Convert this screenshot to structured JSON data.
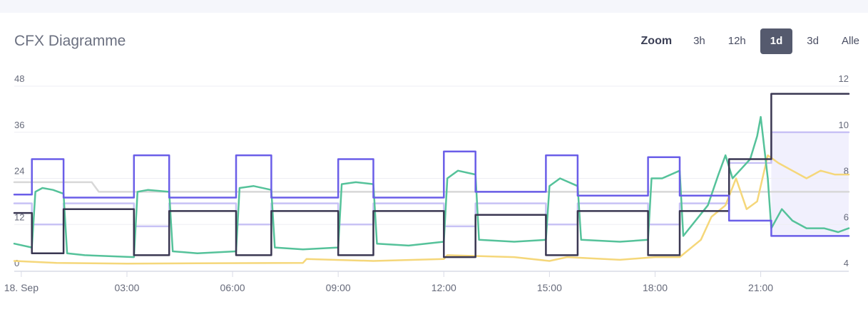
{
  "header": {
    "title": "CFX Diagramme",
    "zoom_label": "Zoom",
    "zoom_options": [
      "3h",
      "12h",
      "1d",
      "3d",
      "Alle"
    ],
    "zoom_selected": "1d"
  },
  "chart_data": {
    "type": "line",
    "title": "CFX Diagramme",
    "x_range_hours": [
      -0.2,
      23.5
    ],
    "x_tick_labels": [
      "18. Sep",
      "03:00",
      "06:00",
      "09:00",
      "12:00",
      "15:00",
      "18:00",
      "21:00"
    ],
    "x_tick_hours": [
      0,
      3,
      6,
      9,
      12,
      15,
      18,
      21
    ],
    "y_left": {
      "range": [
        0,
        48
      ],
      "ticks": [
        0,
        12,
        24,
        36,
        48
      ]
    },
    "y_right": {
      "range": [
        4,
        12
      ],
      "ticks": [
        4,
        6,
        8,
        10,
        12
      ]
    },
    "grid": true,
    "legend": "none",
    "colors": {
      "purple": "#6a5ee8",
      "lavender": "#c8c2f5",
      "dark": "#3a3752",
      "green": "#55c29a",
      "yellow": "#f5d77a",
      "gray": "#d8d8d8",
      "band_fill": "#f1f0fd"
    },
    "series": [
      {
        "color": "purple",
        "axis": "left",
        "points": [
          [
            -0.2,
            19.8
          ],
          [
            0.3,
            19.8
          ],
          [
            0.3,
            29
          ],
          [
            1.2,
            29
          ],
          [
            1.2,
            19
          ],
          [
            3.2,
            19
          ],
          [
            3.2,
            30
          ],
          [
            4.2,
            30
          ],
          [
            4.2,
            19
          ],
          [
            6.1,
            19
          ],
          [
            6.1,
            30
          ],
          [
            7.1,
            30
          ],
          [
            7.1,
            19
          ],
          [
            9.0,
            19
          ],
          [
            9.0,
            29
          ],
          [
            10.0,
            29
          ],
          [
            10.0,
            19
          ],
          [
            12.0,
            19
          ],
          [
            12.0,
            31
          ],
          [
            12.9,
            31
          ],
          [
            12.9,
            20.5
          ],
          [
            14.9,
            20.5
          ],
          [
            14.9,
            30
          ],
          [
            15.8,
            30
          ],
          [
            15.8,
            19.5
          ],
          [
            17.8,
            19.5
          ],
          [
            17.8,
            29.5
          ],
          [
            18.7,
            29.5
          ],
          [
            18.7,
            19.5
          ],
          [
            20.1,
            19.5
          ],
          [
            20.1,
            13
          ],
          [
            21.3,
            13
          ],
          [
            21.3,
            9
          ],
          [
            23.5,
            9
          ]
        ]
      },
      {
        "color": "lavender",
        "axis": "left",
        "points": [
          [
            -0.2,
            17.5
          ],
          [
            0.3,
            17.5
          ],
          [
            0.3,
            12
          ],
          [
            1.2,
            12
          ],
          [
            1.2,
            17.5
          ],
          [
            3.2,
            17.5
          ],
          [
            3.2,
            11.5
          ],
          [
            4.2,
            11.5
          ],
          [
            4.2,
            17.5
          ],
          [
            6.1,
            17.5
          ],
          [
            6.1,
            12
          ],
          [
            7.1,
            12
          ],
          [
            7.1,
            17.5
          ],
          [
            9.0,
            17.5
          ],
          [
            9.0,
            12
          ],
          [
            10.0,
            12
          ],
          [
            10.0,
            17.5
          ],
          [
            12.0,
            17.5
          ],
          [
            12.0,
            11.5
          ],
          [
            12.9,
            11.5
          ],
          [
            12.9,
            17.5
          ],
          [
            14.9,
            17.5
          ],
          [
            14.9,
            12
          ],
          [
            15.8,
            12
          ],
          [
            15.8,
            17.5
          ],
          [
            17.8,
            17.5
          ],
          [
            17.8,
            12
          ],
          [
            18.7,
            12
          ],
          [
            18.7,
            17.5
          ],
          [
            20.1,
            17.5
          ],
          [
            20.1,
            28
          ],
          [
            21.3,
            28
          ],
          [
            21.3,
            36
          ],
          [
            23.5,
            36
          ]
        ]
      },
      {
        "color": "dark",
        "axis": "left",
        "points": [
          [
            -0.2,
            15
          ],
          [
            0.3,
            15
          ],
          [
            0.3,
            4.5
          ],
          [
            1.2,
            4.5
          ],
          [
            1.2,
            16
          ],
          [
            3.2,
            16
          ],
          [
            3.2,
            4
          ],
          [
            4.2,
            4
          ],
          [
            4.2,
            15.5
          ],
          [
            6.1,
            15.5
          ],
          [
            6.1,
            4
          ],
          [
            7.1,
            4
          ],
          [
            7.1,
            15.5
          ],
          [
            9.0,
            15.5
          ],
          [
            9.0,
            4
          ],
          [
            10.0,
            4
          ],
          [
            10.0,
            15.5
          ],
          [
            12.0,
            15.5
          ],
          [
            12.0,
            3.5
          ],
          [
            12.9,
            3.5
          ],
          [
            12.9,
            14.5
          ],
          [
            14.9,
            14.5
          ],
          [
            14.9,
            4
          ],
          [
            15.8,
            4
          ],
          [
            15.8,
            15.5
          ],
          [
            17.8,
            15.5
          ],
          [
            17.8,
            4
          ],
          [
            18.7,
            4
          ],
          [
            18.7,
            15.5
          ],
          [
            20.1,
            15.5
          ],
          [
            20.1,
            29
          ],
          [
            21.3,
            29
          ],
          [
            21.3,
            46
          ],
          [
            23.5,
            46
          ]
        ]
      },
      {
        "color": "gray",
        "axis": "left",
        "points": [
          [
            -0.2,
            23
          ],
          [
            2.0,
            23
          ],
          [
            2.2,
            20.5
          ],
          [
            23.5,
            20.5
          ]
        ]
      },
      {
        "color": "green",
        "axis": "left",
        "points": [
          [
            -0.2,
            7
          ],
          [
            0.3,
            6
          ],
          [
            0.4,
            20.5
          ],
          [
            0.6,
            21.5
          ],
          [
            0.9,
            21
          ],
          [
            1.2,
            20
          ],
          [
            1.3,
            4.5
          ],
          [
            1.8,
            4
          ],
          [
            3.2,
            3.5
          ],
          [
            3.3,
            20.5
          ],
          [
            3.6,
            21
          ],
          [
            4.2,
            20.5
          ],
          [
            4.3,
            5
          ],
          [
            5.0,
            4.5
          ],
          [
            6.1,
            5
          ],
          [
            6.2,
            21.5
          ],
          [
            6.6,
            22
          ],
          [
            7.1,
            21
          ],
          [
            7.2,
            6
          ],
          [
            8.0,
            5.5
          ],
          [
            9.0,
            6
          ],
          [
            9.1,
            22.5
          ],
          [
            9.5,
            23
          ],
          [
            10.0,
            22.5
          ],
          [
            10.1,
            7
          ],
          [
            11.0,
            6.5
          ],
          [
            12.0,
            7.5
          ],
          [
            12.1,
            24
          ],
          [
            12.4,
            26
          ],
          [
            12.9,
            25
          ],
          [
            13.0,
            8
          ],
          [
            14.0,
            7.5
          ],
          [
            14.9,
            8
          ],
          [
            15.0,
            22
          ],
          [
            15.3,
            24
          ],
          [
            15.8,
            22
          ],
          [
            15.9,
            8
          ],
          [
            17.0,
            7.5
          ],
          [
            17.8,
            8
          ],
          [
            17.9,
            24
          ],
          [
            18.2,
            24
          ],
          [
            18.7,
            26
          ],
          [
            18.8,
            9
          ],
          [
            19.5,
            17
          ],
          [
            19.8,
            25
          ],
          [
            20.0,
            30
          ],
          [
            20.2,
            24
          ],
          [
            20.5,
            27
          ],
          [
            20.7,
            29
          ],
          [
            20.9,
            35
          ],
          [
            21.0,
            40
          ],
          [
            21.2,
            24
          ],
          [
            21.3,
            11
          ],
          [
            21.6,
            16
          ],
          [
            21.9,
            13
          ],
          [
            22.3,
            11
          ],
          [
            22.8,
            11
          ],
          [
            23.2,
            10
          ],
          [
            23.5,
            11
          ]
        ]
      },
      {
        "color": "yellow",
        "axis": "left",
        "points": [
          [
            -0.2,
            2.5
          ],
          [
            1.0,
            2
          ],
          [
            3.0,
            1.8
          ],
          [
            5.0,
            1.9
          ],
          [
            8.0,
            2
          ],
          [
            8.1,
            3
          ],
          [
            10.0,
            2.5
          ],
          [
            12.0,
            3
          ],
          [
            12.1,
            4
          ],
          [
            14.0,
            3.5
          ],
          [
            15.0,
            2.5
          ],
          [
            15.5,
            3.5
          ],
          [
            17.0,
            2.8
          ],
          [
            18.0,
            3.5
          ],
          [
            18.7,
            3.5
          ],
          [
            19.3,
            8
          ],
          [
            19.6,
            14
          ],
          [
            20.0,
            17
          ],
          [
            20.3,
            24
          ],
          [
            20.6,
            16
          ],
          [
            20.9,
            18
          ],
          [
            21.2,
            30
          ],
          [
            21.5,
            28
          ],
          [
            21.9,
            26
          ],
          [
            22.3,
            24
          ],
          [
            22.7,
            26
          ],
          [
            23.1,
            25
          ],
          [
            23.5,
            25
          ]
        ]
      }
    ]
  }
}
